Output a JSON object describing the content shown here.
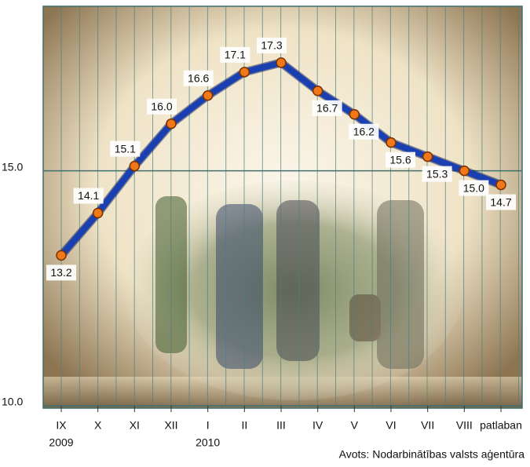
{
  "chart_data": {
    "type": "line",
    "categories": [
      "IX",
      "X",
      "XI",
      "XII",
      "I",
      "II",
      "III",
      "IV",
      "V",
      "VI",
      "VII",
      "VIII",
      "patlaban"
    ],
    "x_sublabels": [
      "2009",
      null,
      null,
      null,
      "2010",
      null,
      null,
      null,
      null,
      null,
      null,
      null,
      null
    ],
    "series": [
      {
        "color": "#1a3fb0",
        "values": [
          13.2,
          14.1,
          15.1,
          16.0,
          16.6,
          17.1,
          17.3,
          16.7,
          16.2,
          15.6,
          15.3,
          15.0,
          14.7
        ],
        "value_labels": [
          "13.2",
          "14.1",
          "15.1",
          "16.0",
          "16.6",
          "17.1",
          "17.3",
          "16.7",
          "16.2",
          "15.6",
          "15.3",
          "15.0",
          "14.7"
        ]
      }
    ],
    "ylim": [
      10,
      18.5
    ],
    "yticks": [
      {
        "value": 10,
        "label": "10.0"
      },
      {
        "value": 15,
        "label": "15.0"
      }
    ],
    "grid": true,
    "source": "Avots: Nodarbinātības valsts aģentūra"
  }
}
